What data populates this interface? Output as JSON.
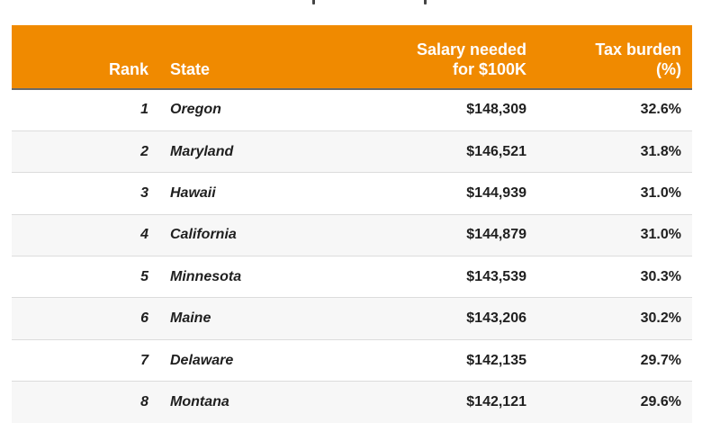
{
  "table": {
    "headers": {
      "rank": "Rank",
      "state": "State",
      "salary_line1": "Salary needed",
      "salary_line2": "for $100K",
      "tax_line1": "Tax burden",
      "tax_line2": "(%)"
    },
    "rows": [
      {
        "rank": "1",
        "state": "Oregon",
        "salary": "$148,309",
        "tax": "32.6%"
      },
      {
        "rank": "2",
        "state": "Maryland",
        "salary": "$146,521",
        "tax": "31.8%"
      },
      {
        "rank": "3",
        "state": "Hawaii",
        "salary": "$144,939",
        "tax": "31.0%"
      },
      {
        "rank": "4",
        "state": "California",
        "salary": "$144,879",
        "tax": "31.0%"
      },
      {
        "rank": "5",
        "state": "Minnesota",
        "salary": "$143,539",
        "tax": "30.3%"
      },
      {
        "rank": "6",
        "state": "Maine",
        "salary": "$143,206",
        "tax": "30.2%"
      },
      {
        "rank": "7",
        "state": "Delaware",
        "salary": "$142,135",
        "tax": "29.7%"
      },
      {
        "rank": "8",
        "state": "Montana",
        "salary": "$142,121",
        "tax": "29.6%"
      }
    ]
  },
  "colors": {
    "header_bg": "#f08a00",
    "header_text": "#ffffff",
    "row_alt_bg": "#f7f7f7"
  }
}
